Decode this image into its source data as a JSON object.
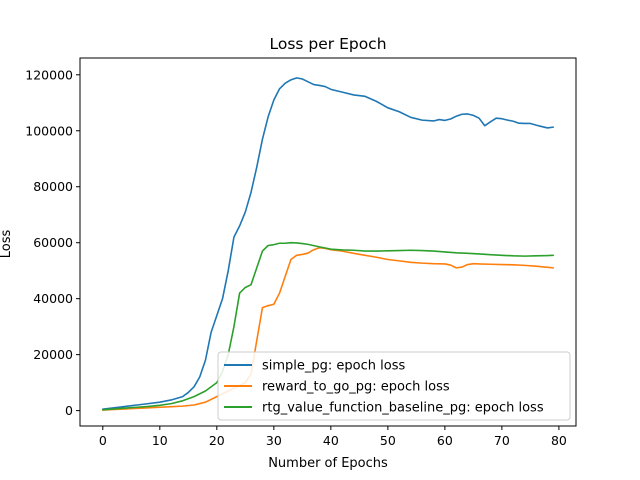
{
  "chart_data": {
    "type": "line",
    "title": "Loss per Epoch",
    "xlabel": "Number of Epochs",
    "ylabel": "Loss",
    "xlim": [
      -4,
      83
    ],
    "ylim": [
      -5500,
      126000
    ],
    "xticks": [
      0,
      10,
      20,
      30,
      40,
      50,
      60,
      70,
      80
    ],
    "yticks": [
      0,
      20000,
      40000,
      60000,
      80000,
      100000,
      120000
    ],
    "grid": false,
    "legend_position": "lower-right",
    "series": [
      {
        "name": "simple_pg: epoch loss",
        "color": "#1f77b4",
        "x": [
          0,
          2,
          4,
          6,
          8,
          10,
          12,
          14,
          15,
          16,
          17,
          18,
          19,
          20,
          21,
          22,
          23,
          24,
          25,
          26,
          27,
          28,
          29,
          30,
          31,
          32,
          33,
          34,
          35,
          36,
          37,
          38,
          39,
          40,
          42,
          44,
          46,
          48,
          50,
          52,
          54,
          56,
          58,
          59,
          60,
          61,
          62,
          63,
          64,
          65,
          66,
          67,
          68,
          69,
          70,
          71,
          72,
          73,
          74,
          75,
          76,
          77,
          78,
          79
        ],
        "y": [
          500,
          1000,
          1500,
          2000,
          2500,
          3000,
          3800,
          5000,
          6500,
          8500,
          12000,
          18000,
          28000,
          34000,
          40000,
          50000,
          62000,
          66000,
          71000,
          78000,
          87000,
          97000,
          105000,
          111000,
          115000,
          117000,
          118200,
          118900,
          118500,
          117500,
          116500,
          116200,
          115800,
          114800,
          113800,
          112800,
          112300,
          110500,
          108200,
          106800,
          104800,
          103800,
          103500,
          104000,
          103700,
          104200,
          105200,
          105900,
          106000,
          105500,
          104500,
          101800,
          103200,
          104500,
          104300,
          103800,
          103400,
          102700,
          102600,
          102600,
          102000,
          101500,
          101000,
          101300
        ]
      },
      {
        "name": "reward_to_go_pg: epoch loss",
        "color": "#ff7f0e",
        "x": [
          0,
          2,
          4,
          6,
          8,
          10,
          12,
          14,
          16,
          18,
          20,
          22,
          24,
          25,
          26,
          27,
          28,
          29,
          30,
          31,
          32,
          33,
          34,
          35,
          36,
          37,
          38,
          39,
          40,
          42,
          44,
          46,
          48,
          50,
          52,
          54,
          56,
          58,
          60,
          61,
          62,
          63,
          64,
          65,
          66,
          68,
          70,
          72,
          74,
          76,
          78,
          79
        ],
        "y": [
          200,
          400,
          600,
          800,
          1000,
          1200,
          1400,
          1600,
          2000,
          3000,
          5000,
          7000,
          9000,
          10000,
          13000,
          25000,
          36800,
          37500,
          38000,
          42000,
          48000,
          54000,
          55500,
          55800,
          56300,
          57500,
          58200,
          58000,
          57500,
          57000,
          56200,
          55500,
          54800,
          54000,
          53500,
          53000,
          52700,
          52500,
          52400,
          52000,
          51000,
          51300,
          52200,
          52500,
          52400,
          52300,
          52200,
          52100,
          51900,
          51600,
          51200,
          51000
        ]
      },
      {
        "name": "rtg_value_function_baseline_pg: epoch loss",
        "color": "#2ca02c",
        "x": [
          0,
          2,
          4,
          6,
          8,
          10,
          12,
          14,
          16,
          18,
          20,
          21,
          22,
          23,
          24,
          25,
          26,
          27,
          28,
          29,
          30,
          31,
          32,
          33,
          34,
          35,
          36,
          38,
          40,
          42,
          44,
          46,
          48,
          50,
          52,
          54,
          56,
          58,
          60,
          62,
          64,
          66,
          68,
          70,
          72,
          74,
          76,
          78,
          79
        ],
        "y": [
          300,
          600,
          900,
          1200,
          1500,
          1900,
          2500,
          3500,
          5000,
          7000,
          10000,
          14000,
          20000,
          30000,
          42000,
          44000,
          45000,
          51000,
          57000,
          59000,
          59300,
          59800,
          59800,
          60000,
          59900,
          59700,
          59400,
          58500,
          57700,
          57400,
          57300,
          57000,
          57000,
          57100,
          57200,
          57300,
          57200,
          57000,
          56700,
          56400,
          56200,
          56000,
          55700,
          55500,
          55300,
          55200,
          55300,
          55400,
          55500
        ]
      }
    ]
  }
}
